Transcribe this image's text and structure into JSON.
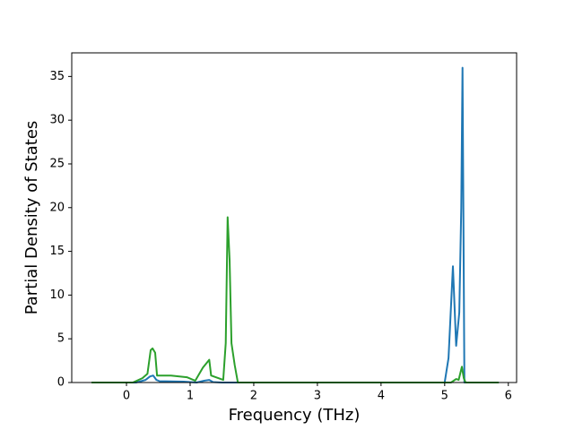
{
  "chart_data": {
    "type": "line",
    "xlabel": "Frequency (THz)",
    "ylabel": "Partial Density of States",
    "xlim": [
      -0.86,
      6.13
    ],
    "ylim": [
      0,
      37.7
    ],
    "xticks": [
      0,
      1,
      2,
      3,
      4,
      5,
      6
    ],
    "yticks": [
      0,
      5,
      10,
      15,
      20,
      25,
      30,
      35
    ],
    "series": [
      {
        "color": "#1f77b4",
        "x": [
          -0.55,
          0.15,
          0.3,
          0.37,
          0.42,
          0.47,
          0.52,
          0.9,
          1.1,
          1.22,
          1.3,
          1.36,
          1.5,
          5.0,
          5.06,
          5.13,
          5.18,
          5.23,
          5.26,
          5.28,
          5.31,
          5.85
        ],
        "values": [
          0,
          0,
          0.3,
          0.7,
          0.8,
          0.3,
          0.15,
          0.1,
          0,
          0.2,
          0.3,
          0.05,
          0,
          0,
          2.8,
          13.3,
          4.2,
          8,
          20,
          36,
          0,
          0
        ]
      },
      {
        "color": "#2ca02c",
        "x": [
          -0.55,
          0.1,
          0.25,
          0.33,
          0.38,
          0.41,
          0.45,
          0.48,
          0.7,
          0.95,
          1.08,
          1.2,
          1.3,
          1.33,
          1.52,
          1.56,
          1.59,
          1.62,
          1.65,
          1.7,
          1.75,
          5.1,
          5.18,
          5.22,
          5.27,
          5.3,
          5.33,
          5.85
        ],
        "values": [
          0,
          0,
          0.5,
          1,
          3.7,
          3.9,
          3.4,
          0.8,
          0.8,
          0.6,
          0.2,
          1.7,
          2.6,
          0.8,
          0.3,
          4.5,
          18.9,
          14,
          4.5,
          2,
          0,
          0,
          0.4,
          0.3,
          1.8,
          0.5,
          0,
          0
        ]
      }
    ]
  }
}
